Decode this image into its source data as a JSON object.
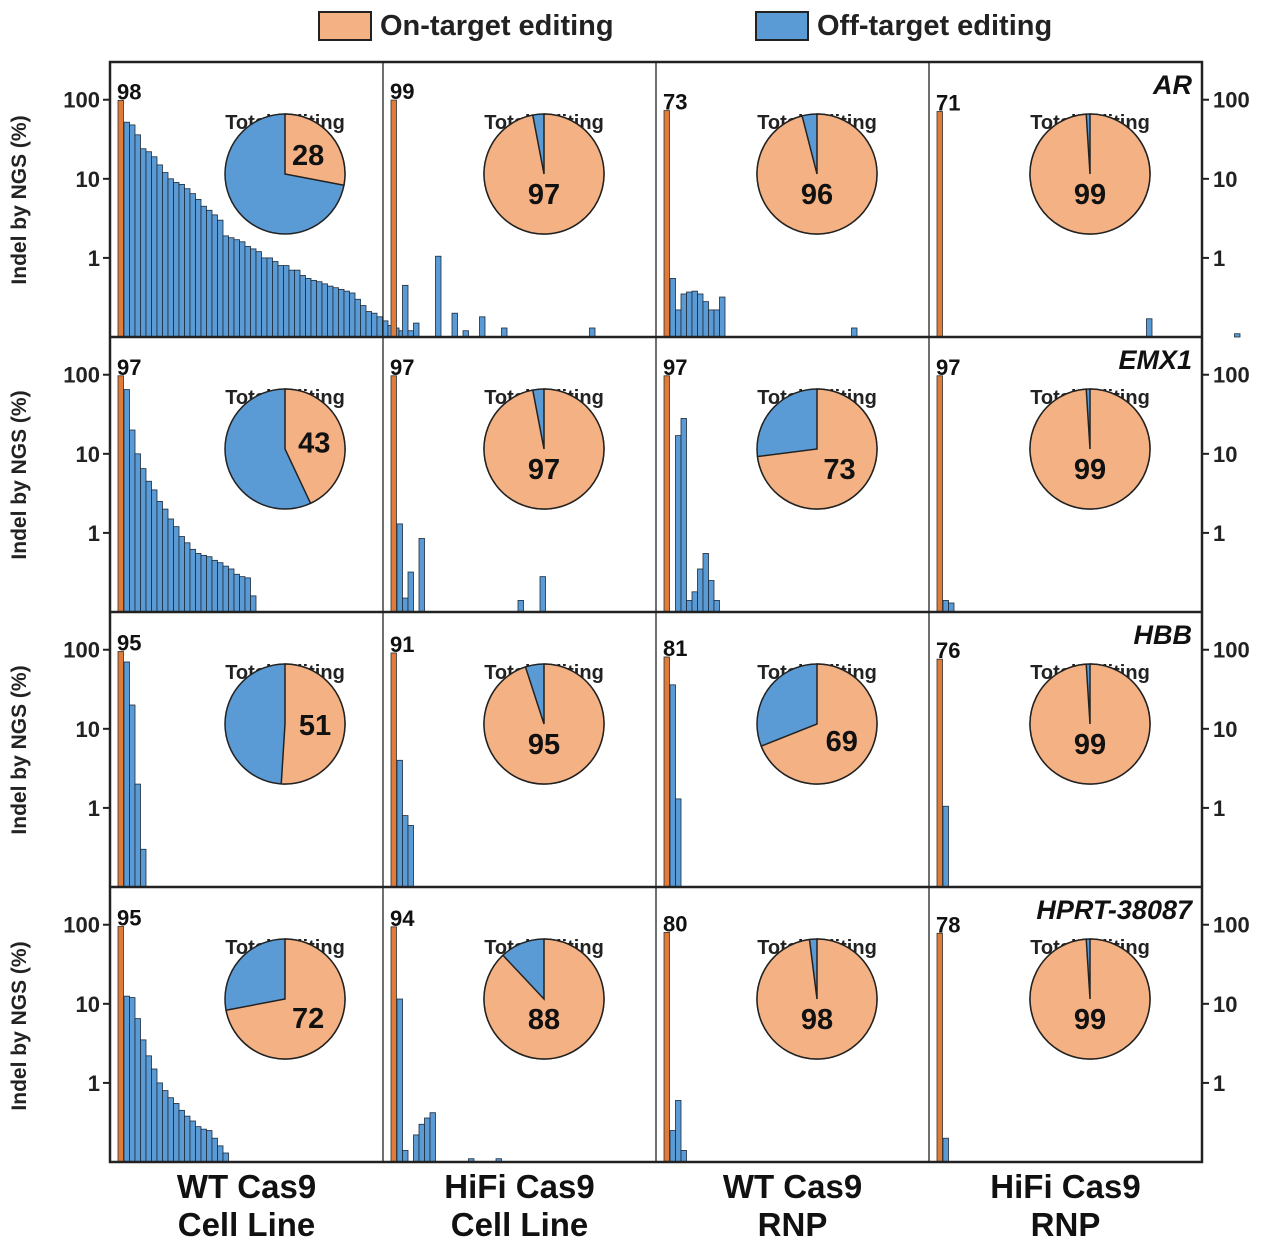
{
  "legend": {
    "on_target": {
      "label": "On-target editing",
      "color": "#F4B183"
    },
    "off_target": {
      "label": "Off-target editing",
      "color": "#5B9BD5"
    }
  },
  "ylabel": "Indel by NGS (%)",
  "pie_title": "Total Editing",
  "columns": [
    {
      "line1": "WT Cas9",
      "line2": "Cell Line"
    },
    {
      "line1": "HiFi Cas9",
      "line2": "Cell Line"
    },
    {
      "line1": "WT Cas9",
      "line2": "RNP"
    },
    {
      "line1": "HiFi Cas9",
      "line2": "RNP"
    }
  ],
  "y_ticks": [
    "100",
    "10",
    "1"
  ],
  "chart_data": {
    "type": "bar",
    "y_scale": "log",
    "ylim": [
      0.1,
      300
    ],
    "ylabel": "Indel by NGS (%)",
    "rows": [
      {
        "gene": "AR",
        "panels": [
          {
            "on": 98,
            "label": "98",
            "total_on_target": 28,
            "off": [
              52,
              48,
              36,
              24,
              22,
              19,
              15,
              12,
              10,
              9,
              8.5,
              7.5,
              6.5,
              5.5,
              4.5,
              4,
              3.5,
              3,
              1.9,
              1.8,
              1.7,
              1.6,
              1.4,
              1.3,
              1.2,
              1,
              1,
              0.9,
              0.8,
              0.8,
              0.7,
              0.7,
              0.6,
              0.55,
              0.52,
              0.5,
              0.47,
              0.44,
              0.42,
              0.4,
              0.38,
              0.36,
              0.3,
              0.25,
              0.21,
              0.2,
              0.18,
              0.16,
              0.14,
              0.13,
              0.12
            ]
          },
          {
            "on": 99,
            "label": "99",
            "total_on_target": 97,
            "off": [
              0,
              0.45,
              0.12,
              0.15,
              0,
              0,
              0,
              1.05,
              0,
              0,
              0.2,
              0,
              0.12,
              0,
              0,
              0.18,
              0,
              0,
              0,
              0.13,
              0,
              0,
              0,
              0,
              0,
              0,
              0,
              0,
              0,
              0,
              0,
              0,
              0,
              0,
              0,
              0.13
            ]
          },
          {
            "on": 73,
            "label": "73",
            "total_on_target": 96,
            "off": [
              0.55,
              0.22,
              0.35,
              0.37,
              0.38,
              0.35,
              0.28,
              0.22,
              0.22,
              0.32,
              0,
              0,
              0,
              0,
              0,
              0,
              0,
              0,
              0,
              0,
              0,
              0,
              0,
              0,
              0,
              0,
              0,
              0,
              0,
              0,
              0,
              0,
              0,
              0.13
            ]
          },
          {
            "on": 71,
            "label": "71",
            "total_on_target": 99,
            "off": [
              0,
              0,
              0,
              0,
              0,
              0,
              0,
              0,
              0,
              0,
              0,
              0,
              0,
              0,
              0,
              0,
              0,
              0,
              0,
              0,
              0,
              0,
              0,
              0,
              0,
              0,
              0,
              0,
              0,
              0,
              0,
              0,
              0,
              0,
              0,
              0,
              0,
              0.17,
              0,
              0,
              0,
              0,
              0,
              0,
              0,
              0,
              0,
              0,
              0,
              0,
              0,
              0,
              0,
              0.11
            ]
          }
        ]
      },
      {
        "gene": "EMX1",
        "panels": [
          {
            "on": 97,
            "label": "97",
            "total_on_target": 43,
            "off": [
              65,
              20,
              10,
              6.5,
              4.5,
              3.5,
              2.5,
              2,
              1.5,
              1.2,
              0.9,
              0.75,
              0.62,
              0.55,
              0.52,
              0.5,
              0.45,
              0.42,
              0.38,
              0.35,
              0.3,
              0.28,
              0.27,
              0.16
            ]
          },
          {
            "on": 97,
            "label": "97",
            "total_on_target": 97,
            "off": [
              1.3,
              0.15,
              0.32,
              0,
              0.85,
              0,
              0,
              0,
              0,
              0,
              0,
              0,
              0,
              0,
              0,
              0,
              0,
              0,
              0,
              0,
              0,
              0,
              0.14,
              0,
              0,
              0,
              0.28
            ]
          },
          {
            "on": 97,
            "label": "97",
            "total_on_target": 73,
            "off": [
              0,
              17,
              28,
              0.14,
              0.18,
              0.35,
              0.55,
              0.25,
              0.14
            ]
          },
          {
            "on": 97,
            "label": "97",
            "total_on_target": 99,
            "off": [
              0.14,
              0.13
            ]
          }
        ]
      },
      {
        "gene": "HBB",
        "panels": [
          {
            "on": 95,
            "label": "95",
            "total_on_target": 51,
            "off": [
              70,
              20,
              2,
              0.3
            ]
          },
          {
            "on": 91,
            "label": "91",
            "total_on_target": 95,
            "off": [
              4,
              0.8,
              0.6
            ]
          },
          {
            "on": 81,
            "label": "81",
            "total_on_target": 69,
            "off": [
              36,
              1.3
            ]
          },
          {
            "on": 76,
            "label": "76",
            "total_on_target": 99,
            "off": [
              1.05
            ]
          }
        ]
      },
      {
        "gene": "HPRT-38087",
        "panels": [
          {
            "on": 95,
            "label": "95",
            "total_on_target": 72,
            "off": [
              12.5,
              12,
              6.5,
              3.5,
              2.2,
              1.5,
              1,
              0.8,
              0.65,
              0.55,
              0.45,
              0.38,
              0.33,
              0.28,
              0.26,
              0.25,
              0.2,
              0.16,
              0.13
            ]
          },
          {
            "on": 94,
            "label": "94",
            "total_on_target": 88,
            "off": [
              11.5,
              0.14,
              0,
              0.22,
              0.3,
              0.36,
              0.42,
              0,
              0,
              0,
              0,
              0,
              0,
              0.11,
              0,
              0,
              0,
              0,
              0.11
            ]
          },
          {
            "on": 80,
            "label": "80",
            "total_on_target": 98,
            "off": [
              0.25,
              0.6,
              0.14
            ]
          },
          {
            "on": 78,
            "label": "78",
            "total_on_target": 99,
            "off": [
              0.2
            ]
          }
        ]
      }
    ]
  }
}
